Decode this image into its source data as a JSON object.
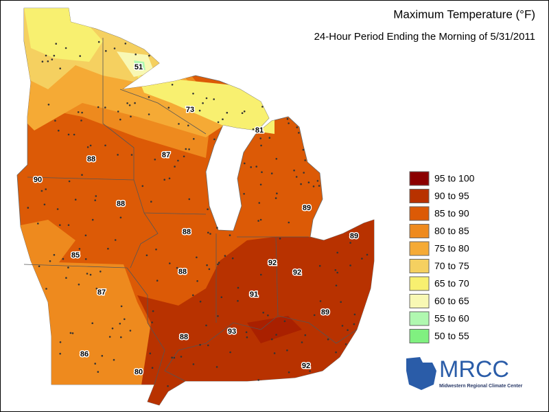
{
  "title": "Maximum Temperature (°F)",
  "subtitle": "24-Hour Period Ending the Morning of 5/31/2011",
  "legend": [
    {
      "label": "95 to 100",
      "color": "#8b0000"
    },
    {
      "label": "90 to 95",
      "color": "#b83200"
    },
    {
      "label": "85 to 90",
      "color": "#dc5a06"
    },
    {
      "label": "80 to 85",
      "color": "#ee8a1e"
    },
    {
      "label": "75 to 80",
      "color": "#f5aa35"
    },
    {
      "label": "70 to 75",
      "color": "#f5d060"
    },
    {
      "label": "65 to 70",
      "color": "#f8f070"
    },
    {
      "label": "60 to 65",
      "color": "#f8f8b4"
    },
    {
      "label": "55 to 60",
      "color": "#b0f8b0"
    },
    {
      "label": "50 to 55",
      "color": "#80f080"
    }
  ],
  "station_labels": [
    51,
    73,
    81,
    88,
    87,
    90,
    88,
    89,
    88,
    85,
    92,
    89,
    92,
    91,
    87,
    88,
    93,
    89,
    88,
    86,
    80,
    92
  ],
  "logo": {
    "name": "MRCC",
    "caption": "Midwestern Regional Climate Center"
  }
}
